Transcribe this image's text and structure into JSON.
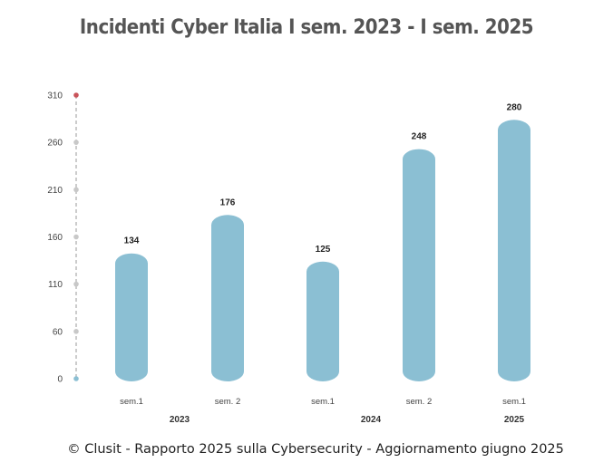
{
  "chart_data": {
    "type": "bar",
    "title": "Incidenti Cyber Italia I sem. 2023 - I sem. 2025",
    "categories": [
      "sem.1",
      "sem. 2",
      "sem.1",
      "sem. 2",
      "sem.1"
    ],
    "groups": [
      {
        "label": "2023",
        "span": [
          0,
          1
        ]
      },
      {
        "label": "2024",
        "span": [
          2,
          3
        ]
      },
      {
        "label": "2025",
        "span": [
          4,
          4
        ]
      }
    ],
    "values": [
      134,
      176,
      125,
      248,
      280
    ],
    "yticks": [
      "0",
      "60",
      "110",
      "160",
      "210",
      "260",
      "310"
    ],
    "ylim": [
      0,
      310
    ],
    "xlabel": "",
    "ylabel": "",
    "grid": false,
    "bar_color": "#8bbfd3",
    "axis_top_dot_color": "#c9545a",
    "axis_bottom_dot_color": "#8bbfd3"
  },
  "footer": "© Clusit - Rapporto 2025 sulla Cybersecurity - Aggiornamento giugno 2025"
}
